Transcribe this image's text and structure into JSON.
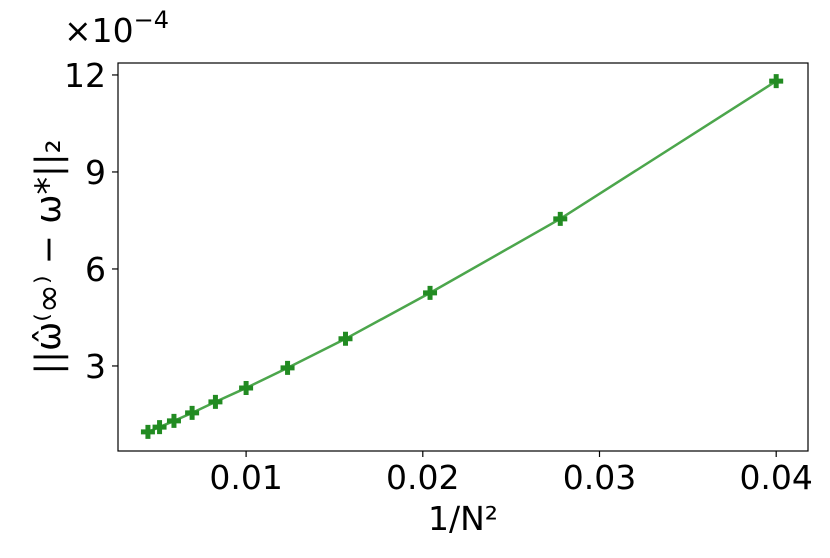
{
  "chart_data": {
    "type": "line",
    "x_label": "1/N²",
    "y_label": "||ω̂⁽∞⁾ − ω*||₂",
    "y_offset_text": {
      "base": "×10",
      "exponent": "−4"
    },
    "x": [
      0.04,
      0.02778,
      0.02041,
      0.015625,
      0.012346,
      0.01,
      0.008264,
      0.006944,
      0.005917,
      0.005102,
      0.004444
    ],
    "series": [
      {
        "color": "#228b22",
        "line_color": "#4ca64c",
        "values": [
          11.81,
          7.55,
          5.26,
          3.84,
          2.94,
          2.32,
          1.89,
          1.55,
          1.3,
          1.11,
          0.96
        ]
      }
    ],
    "xlim": [
      0.00275,
      0.0418
    ],
    "xticks": [
      0.01,
      0.02,
      0.03,
      0.04
    ],
    "ylim": [
      0.37,
      12.37
    ],
    "yticks": [
      3,
      6,
      9,
      12
    ],
    "grid": false
  }
}
